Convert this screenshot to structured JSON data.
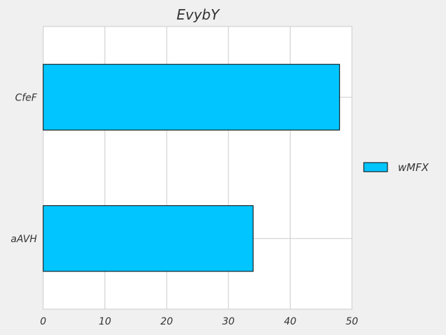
{
  "chart_data": {
    "type": "bar",
    "orientation": "horizontal",
    "title": "EvybY",
    "categories": [
      "aAVH",
      "CfeF"
    ],
    "series": [
      {
        "name": "wMFX",
        "values": [
          34,
          48
        ],
        "color": "#00c5ff"
      }
    ],
    "xlim": [
      0,
      50
    ],
    "xticks": [
      "0",
      "10",
      "20",
      "30",
      "40",
      "50"
    ],
    "grid": true,
    "legend_position": "center-right",
    "colors": {
      "background": "#f0f0f0",
      "plot_background": "#ffffff",
      "grid": "#cbcbcb",
      "bar_edge": "#000000"
    }
  }
}
